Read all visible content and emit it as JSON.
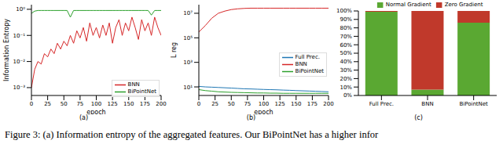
{
  "caption": "Figure 3: (a) Information entropy of the aggregated features. Our BiPointNet has a higher infor",
  "chart_data": [
    {
      "type": "line",
      "title": "(a)",
      "x_label": "epoch",
      "y_label": "Information Entropy",
      "log": "y",
      "legend": "lower right",
      "x": [
        0,
        5,
        10,
        15,
        20,
        25,
        30,
        35,
        40,
        45,
        50,
        55,
        60,
        65,
        70,
        75,
        80,
        85,
        90,
        95,
        100,
        105,
        110,
        115,
        120,
        125,
        130,
        135,
        140,
        145,
        150,
        155,
        160,
        165,
        170,
        175,
        180,
        185,
        190,
        195,
        200
      ],
      "xlim": [
        0,
        200
      ],
      "xticks": [
        0,
        25,
        50,
        75,
        100,
        125,
        150,
        175,
        200
      ],
      "ylim": [
        0.0005,
        1.5
      ],
      "yticks": [
        {
          "value": 0.001,
          "label": "10⁻³"
        },
        {
          "value": 0.01,
          "label": "10⁻²"
        },
        {
          "value": 0.1,
          "label": "10⁻¹"
        },
        {
          "value": 1,
          "label": "10⁰"
        }
      ],
      "series": [
        {
          "name": "BNN",
          "color": "#d62728",
          "values": [
            0.001,
            0.005,
            0.01,
            0.008,
            0.02,
            0.015,
            0.03,
            0.02,
            0.05,
            0.03,
            0.06,
            0.04,
            0.1,
            0.05,
            0.15,
            0.08,
            0.2,
            0.06,
            0.3,
            0.1,
            0.2,
            0.08,
            0.25,
            0.1,
            0.3,
            0.05,
            0.2,
            0.4,
            0.1,
            0.3,
            0.15,
            0.5,
            0.2,
            0.07,
            0.4,
            0.15,
            0.3,
            0.1,
            0.5,
            0.2,
            0.1
          ]
        },
        {
          "name": "BiPointNet",
          "color": "#2ca02c",
          "values": [
            0.7,
            0.85,
            0.9,
            0.9,
            0.9,
            0.9,
            0.9,
            0.9,
            0.9,
            0.9,
            0.9,
            0.9,
            0.5,
            0.9,
            0.9,
            0.9,
            0.9,
            0.9,
            0.9,
            0.9,
            0.9,
            0.9,
            0.9,
            0.9,
            0.9,
            0.9,
            0.9,
            0.9,
            0.9,
            0.9,
            0.9,
            0.9,
            0.9,
            0.9,
            0.9,
            0.9,
            0.9,
            0.6,
            0.9,
            0.9,
            0.9
          ]
        }
      ]
    },
    {
      "type": "line",
      "title": "(b)",
      "x_label": "epoch",
      "y_label": "L reg",
      "log": "y",
      "legend": "center right",
      "x": [
        0,
        10,
        20,
        30,
        40,
        50,
        60,
        70,
        80,
        90,
        100,
        110,
        120,
        130,
        140,
        150,
        160,
        170,
        180,
        190,
        200
      ],
      "xlim": [
        0,
        200
      ],
      "xticks": [
        0,
        25,
        50,
        75,
        100,
        125,
        150,
        175,
        200
      ],
      "ylim": [
        2,
        50000000
      ],
      "yticks": [
        {
          "value": 10,
          "label": "10¹"
        },
        {
          "value": 1000,
          "label": "10³"
        },
        {
          "value": 100000,
          "label": "10⁵"
        },
        {
          "value": 10000000,
          "label": "10⁷"
        }
      ],
      "series": [
        {
          "name": "Full Prec.",
          "color": "#1f77b4",
          "values": [
            11,
            10,
            9.5,
            9,
            8.5,
            8,
            7.5,
            7,
            6.8,
            6.5,
            6.2,
            6,
            5.8,
            5.5,
            5.3,
            5,
            4.8,
            4.6,
            4.4,
            4.2,
            4
          ]
        },
        {
          "name": "BNN",
          "color": "#d62728",
          "values": [
            300000,
            1000000,
            4000000,
            10000000,
            15000000,
            20000000,
            23000000,
            25000000,
            26000000,
            26000000,
            26000000,
            26000000,
            26000000,
            26000000,
            26000000,
            26000000,
            26000000,
            26000000,
            26000000,
            26000000,
            26000000
          ]
        },
        {
          "name": "BiPointNet",
          "color": "#2ca02c",
          "values": [
            6,
            5,
            4.5,
            4,
            3.8,
            3.6,
            3.5,
            3.4,
            3.3,
            3.2,
            3.2,
            3.1,
            3.1,
            3,
            3,
            3,
            3,
            3,
            3,
            3,
            3
          ]
        }
      ]
    },
    {
      "type": "bar",
      "title": "(c)",
      "stacked": true,
      "legend": "upper center",
      "categories": [
        "Full Prec.",
        "BNN",
        "BiPointNet"
      ],
      "ylim": [
        0,
        100
      ],
      "yticks": [
        {
          "value": 0,
          "label": "0%"
        },
        {
          "value": 10,
          "label": "10%"
        },
        {
          "value": 20,
          "label": "20%"
        },
        {
          "value": 30,
          "label": "30%"
        },
        {
          "value": 40,
          "label": "40%"
        },
        {
          "value": 50,
          "label": "50%"
        },
        {
          "value": 60,
          "label": "60%"
        },
        {
          "value": 70,
          "label": "70%"
        },
        {
          "value": 80,
          "label": "80%"
        },
        {
          "value": 90,
          "label": "90%"
        },
        {
          "value": 100,
          "label": "100%"
        }
      ],
      "series": [
        {
          "name": "Normal Gradient",
          "color": "#5aa832",
          "values": [
            99,
            7,
            86
          ]
        },
        {
          "name": "Zero Gradient",
          "color": "#c0392b",
          "values": [
            1,
            93,
            14
          ]
        }
      ]
    }
  ]
}
